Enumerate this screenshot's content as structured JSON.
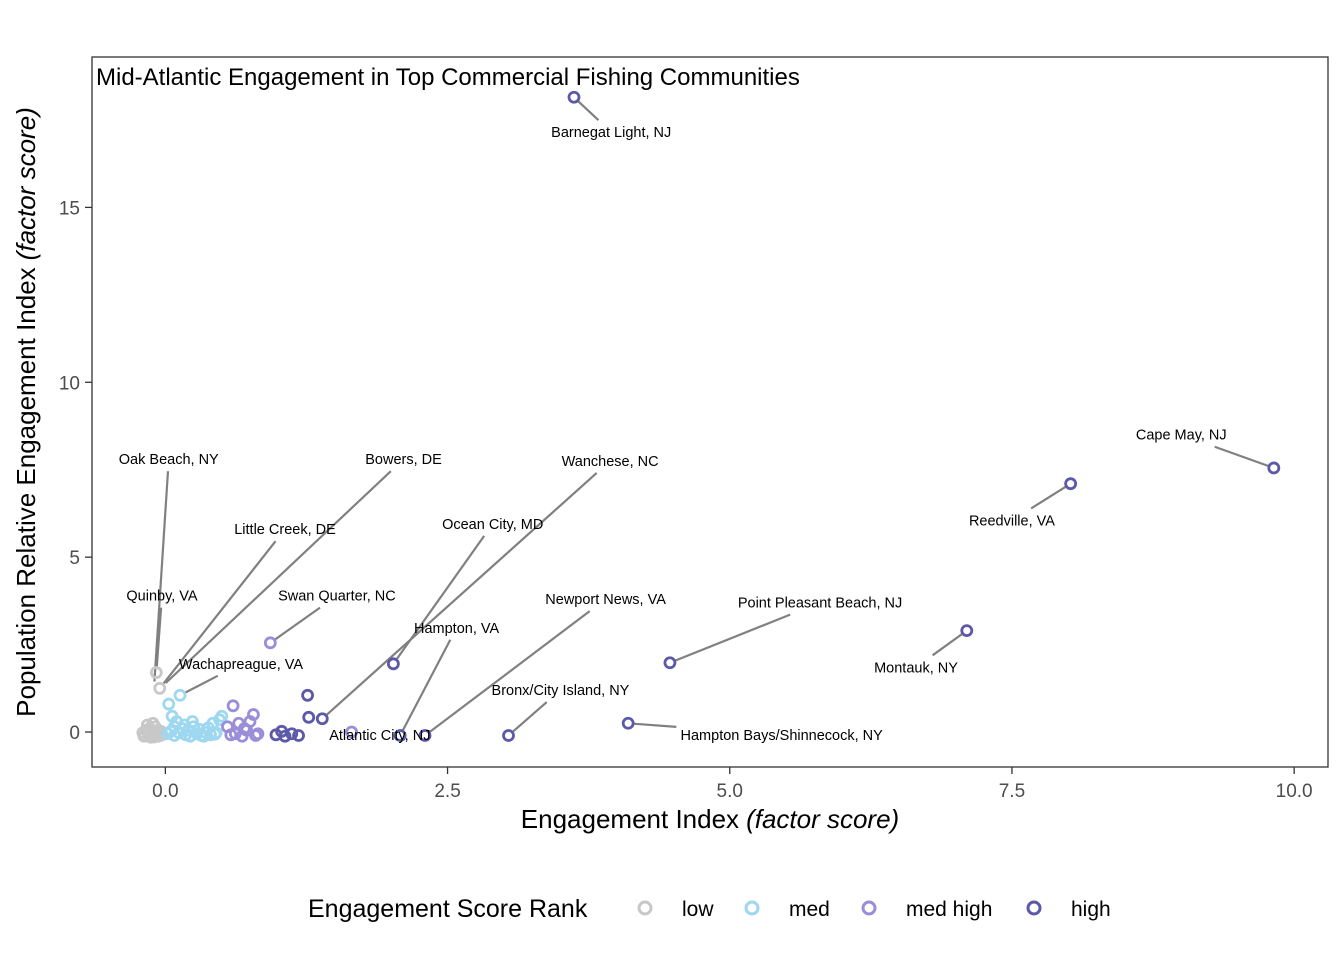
{
  "chart_data": {
    "type": "scatter",
    "title": "Mid-Atlantic Engagement in Top Commercial Fishing Communities",
    "xlabel": "Engagement Index",
    "xlabel_italic": "(factor score)",
    "ylabel": "Population Relative Engagement Index",
    "ylabel_italic": "(factor score)",
    "xlim": [
      -0.65,
      10.3
    ],
    "ylim": [
      -1.0,
      19.3
    ],
    "xticks": [
      0.0,
      2.5,
      5.0,
      7.5,
      10.0
    ],
    "xtick_labels": [
      "0.0",
      "2.5",
      "5.0",
      "7.5",
      "10.0"
    ],
    "yticks": [
      0,
      5,
      10,
      15
    ],
    "ytick_labels": [
      "0",
      "5",
      "10",
      "15"
    ],
    "grid": false,
    "legend": {
      "title": "Engagement Score Rank",
      "position": "bottom",
      "items": [
        {
          "key": "low",
          "label": "low",
          "color": "#c8c8c8"
        },
        {
          "key": "med",
          "label": "med",
          "color": "#9ed8f0"
        },
        {
          "key": "med high",
          "label": "med high",
          "color": "#9b8ed9"
        },
        {
          "key": "high",
          "label": "high",
          "color": "#5c5aa8"
        }
      ]
    },
    "series": [
      {
        "name": "low",
        "points": [
          [
            -0.18,
            -0.08
          ],
          [
            -0.15,
            -0.05
          ],
          [
            -0.12,
            -0.1
          ],
          [
            -0.1,
            0.0
          ],
          [
            -0.08,
            -0.06
          ],
          [
            -0.06,
            -0.12
          ],
          [
            -0.2,
            -0.02
          ],
          [
            -0.14,
            0.1
          ],
          [
            -0.11,
            0.25
          ],
          [
            -0.16,
            0.2
          ],
          [
            -0.09,
            0.15
          ],
          [
            -0.05,
            -0.03
          ],
          [
            -0.03,
            -0.08
          ],
          [
            -0.13,
            -0.15
          ],
          [
            -0.07,
            0.05
          ],
          [
            -0.17,
            0.05
          ],
          [
            -0.12,
            0.05
          ],
          [
            -0.1,
            -0.14
          ],
          [
            -0.04,
            0.02
          ],
          [
            -0.19,
            -0.12
          ],
          [
            -0.08,
            1.7
          ],
          [
            -0.05,
            1.25
          ]
        ]
      },
      {
        "name": "med",
        "points": [
          [
            0.02,
            -0.05
          ],
          [
            0.05,
            0.02
          ],
          [
            0.08,
            -0.1
          ],
          [
            0.1,
            0.3
          ],
          [
            0.12,
            -0.02
          ],
          [
            0.15,
            0.1
          ],
          [
            0.18,
            -0.08
          ],
          [
            0.2,
            0.05
          ],
          [
            0.22,
            -0.12
          ],
          [
            0.25,
            0.15
          ],
          [
            0.28,
            -0.05
          ],
          [
            0.3,
            0.08
          ],
          [
            0.32,
            -0.1
          ],
          [
            0.35,
            0.0
          ],
          [
            0.38,
            0.12
          ],
          [
            0.4,
            -0.08
          ],
          [
            0.42,
            0.25
          ],
          [
            0.45,
            -0.02
          ],
          [
            0.48,
            0.35
          ],
          [
            0.5,
            0.45
          ],
          [
            0.06,
            0.45
          ],
          [
            0.03,
            0.8
          ],
          [
            0.13,
            1.05
          ],
          [
            0.17,
            0.2
          ],
          [
            0.24,
            0.3
          ],
          [
            0.34,
            -0.12
          ],
          [
            0.44,
            -0.06
          ],
          [
            0.08,
            0.15
          ]
        ]
      },
      {
        "name": "med high",
        "points": [
          [
            0.93,
            2.55
          ],
          [
            0.6,
            0.75
          ],
          [
            0.65,
            0.25
          ],
          [
            0.7,
            0.1
          ],
          [
            0.75,
            0.3
          ],
          [
            0.78,
            0.5
          ],
          [
            0.8,
            -0.1
          ],
          [
            0.62,
            -0.05
          ],
          [
            0.68,
            -0.12
          ],
          [
            0.72,
            0.05
          ],
          [
            0.55,
            0.15
          ],
          [
            0.58,
            -0.08
          ],
          [
            0.82,
            -0.05
          ],
          [
            1.65,
            0.0
          ]
        ]
      },
      {
        "name": "high",
        "points": [
          [
            3.62,
            18.15
          ],
          [
            9.82,
            7.55
          ],
          [
            8.02,
            7.1
          ],
          [
            7.1,
            2.9
          ],
          [
            4.47,
            1.98
          ],
          [
            2.02,
            1.95
          ],
          [
            1.26,
            1.05
          ],
          [
            1.27,
            0.42
          ],
          [
            1.39,
            0.38
          ],
          [
            1.03,
            0.02
          ],
          [
            0.98,
            -0.08
          ],
          [
            1.06,
            -0.12
          ],
          [
            1.12,
            -0.05
          ],
          [
            1.18,
            -0.1
          ],
          [
            2.08,
            -0.1
          ],
          [
            2.3,
            -0.1
          ],
          [
            3.04,
            -0.1
          ],
          [
            4.1,
            0.25
          ]
        ]
      }
    ],
    "annotations": [
      {
        "label": "Barnegat Light, NJ",
        "x": 3.62,
        "y": 18.15,
        "lx": 3.95,
        "ly": 17.15
      },
      {
        "label": "Cape May, NJ",
        "x": 9.82,
        "y": 7.55,
        "lx": 9.0,
        "ly": 8.5
      },
      {
        "label": "Reedville, VA",
        "x": 8.02,
        "y": 7.1,
        "lx": 7.5,
        "ly": 6.05
      },
      {
        "label": "Montauk, NY",
        "x": 7.1,
        "y": 2.9,
        "lx": 6.65,
        "ly": 1.85
      },
      {
        "label": "Point Pleasant Beach, NJ",
        "x": 4.47,
        "y": 1.98,
        "lx": 5.8,
        "ly": 3.7
      },
      {
        "label": "Hampton Bays/Shinnecock, NY",
        "x": 4.1,
        "y": 0.25,
        "lx": 5.46,
        "ly": -0.08
      },
      {
        "label": "Bronx/City Island, NY",
        "x": 3.04,
        "y": -0.1,
        "lx": 3.5,
        "ly": 1.2
      },
      {
        "label": "Newport News, VA",
        "x": 2.3,
        "y": -0.1,
        "lx": 3.9,
        "ly": 3.8
      },
      {
        "label": "Hampton, VA",
        "x": 2.08,
        "y": -0.1,
        "lx": 2.58,
        "ly": 2.98
      },
      {
        "label": "Atlantic City, NJ",
        "x": 1.65,
        "y": 0.0,
        "lx": 1.9,
        "ly": -0.08
      },
      {
        "label": "Ocean City, MD",
        "x": 2.02,
        "y": 1.95,
        "lx": 2.9,
        "ly": 5.95
      },
      {
        "label": "Wanchese, NC",
        "x": 1.39,
        "y": 0.38,
        "lx": 3.94,
        "ly": 7.75
      },
      {
        "label": "Swan Quarter, NC",
        "x": 0.93,
        "y": 2.55,
        "lx": 1.52,
        "ly": 3.9
      },
      {
        "label": "Wachapreague, VA",
        "x": 0.13,
        "y": 1.05,
        "lx": 0.67,
        "ly": 1.95
      },
      {
        "label": "Quinby, VA",
        "x": -0.08,
        "y": 1.7,
        "lx": -0.03,
        "ly": 3.9
      },
      {
        "label": "Little Creek, DE",
        "x": -0.05,
        "y": 1.25,
        "lx": 1.06,
        "ly": 5.8
      },
      {
        "label": "Bowers, DE",
        "x": -0.03,
        "y": 1.3,
        "lx": 2.11,
        "ly": 7.8
      },
      {
        "label": "Oak Beach, NY",
        "x": -0.1,
        "y": 1.3,
        "lx": 0.03,
        "ly": 7.8
      }
    ]
  }
}
